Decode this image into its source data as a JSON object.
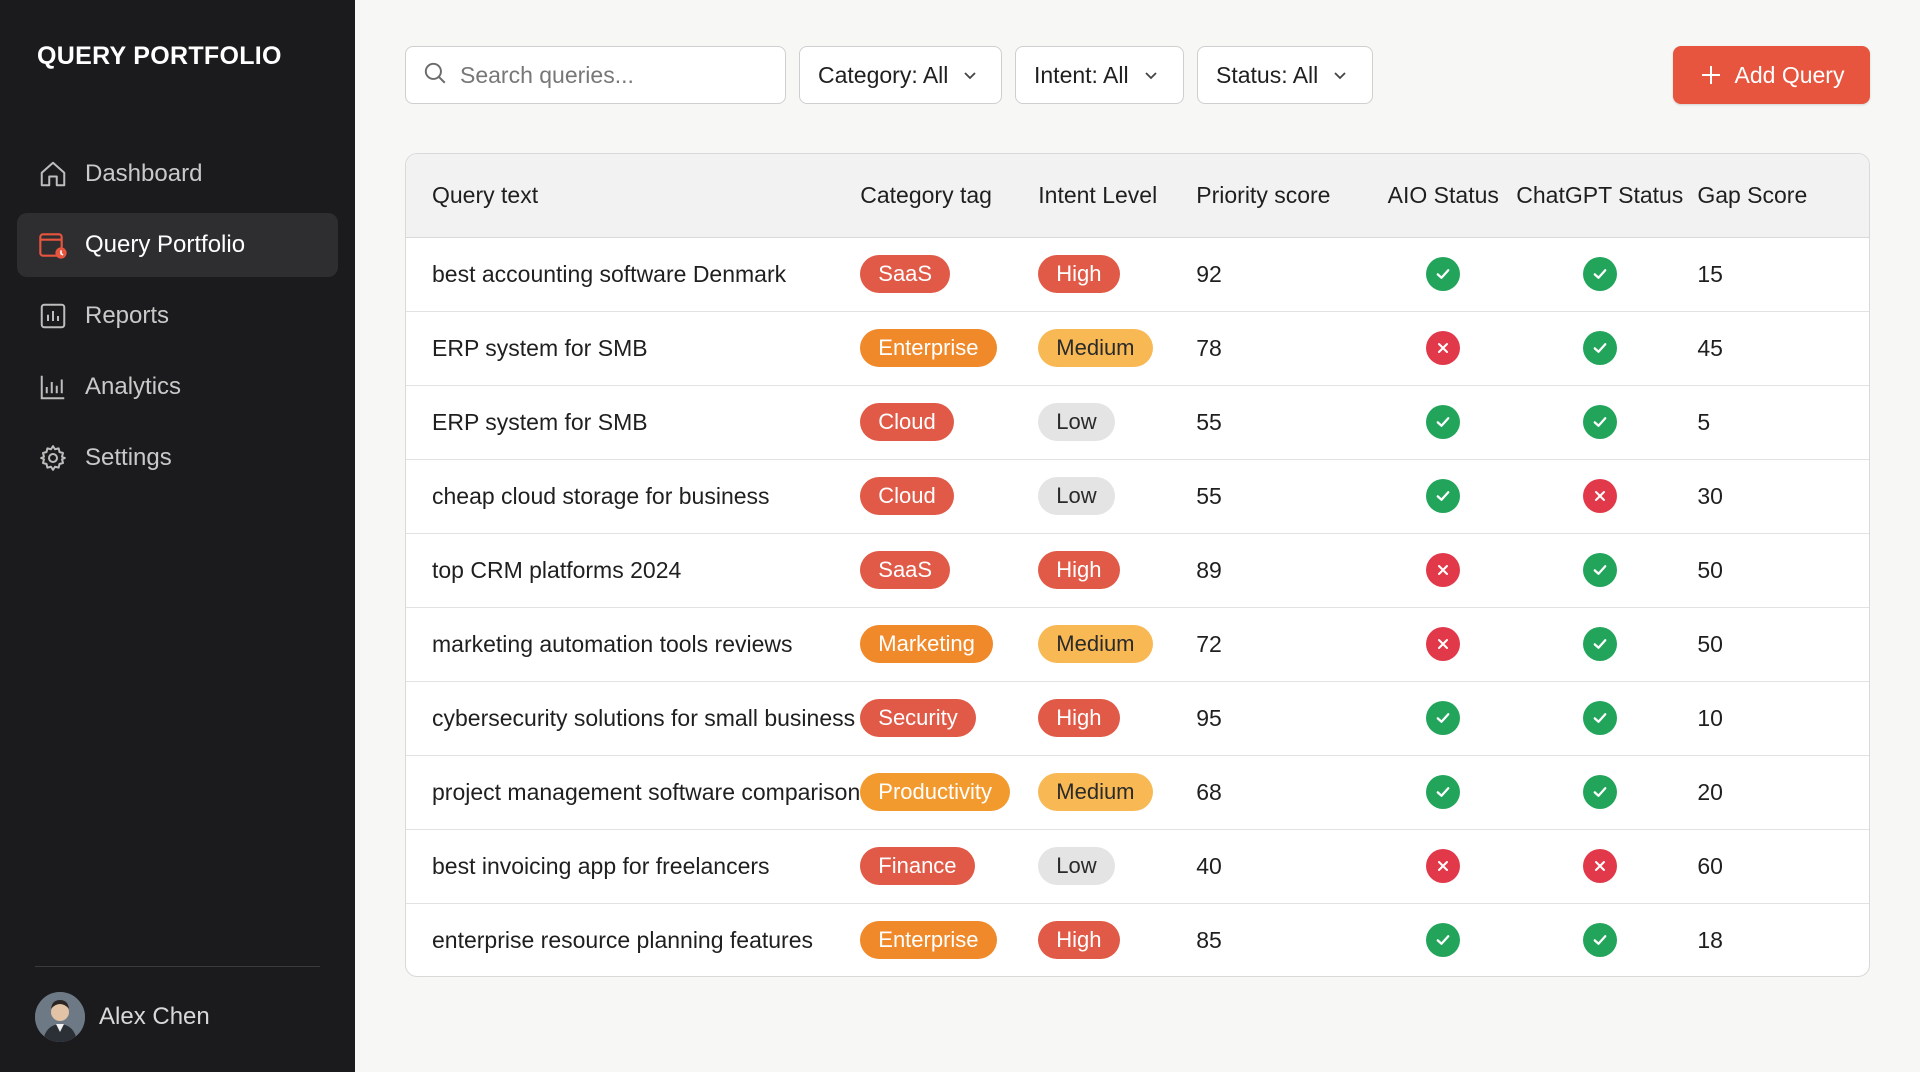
{
  "app": {
    "title": "QUERY PORTFOLIO"
  },
  "sidebar": {
    "items": [
      {
        "label": "Dashboard",
        "icon": "home-icon",
        "active": false
      },
      {
        "label": "Query Portfolio",
        "icon": "portfolio-icon",
        "active": true
      },
      {
        "label": "Reports",
        "icon": "reports-icon",
        "active": false
      },
      {
        "label": "Analytics",
        "icon": "analytics-icon",
        "active": false
      },
      {
        "label": "Settings",
        "icon": "gear-icon",
        "active": false
      }
    ],
    "user": {
      "name": "Alex Chen"
    }
  },
  "toolbar": {
    "search_placeholder": "Search queries...",
    "filters": [
      {
        "label": "Category: All"
      },
      {
        "label": "Intent: All"
      },
      {
        "label": "Status: All"
      }
    ],
    "add_label": "Add Query"
  },
  "table": {
    "headers": [
      "Query text",
      "Category tag",
      "Intent Level",
      "Priority score",
      "AIO Status",
      "ChatGPT Status",
      "Gap Score"
    ],
    "rows": [
      {
        "query": "best accounting software Denmark",
        "category": "SaaS",
        "intent": "High",
        "priority": "92",
        "aio": "ok",
        "chatgpt": "ok",
        "gap": "15"
      },
      {
        "query": "ERP system for SMB",
        "category": "Enterprise",
        "intent": "Medium",
        "priority": "78",
        "aio": "bad",
        "chatgpt": "ok",
        "gap": "45"
      },
      {
        "query": "ERP system for SMB",
        "category": "Cloud",
        "intent": "Low",
        "priority": "55",
        "aio": "ok",
        "chatgpt": "ok",
        "gap": "5"
      },
      {
        "query": "cheap cloud storage for business",
        "category": "Cloud",
        "intent": "Low",
        "priority": "55",
        "aio": "ok",
        "chatgpt": "bad",
        "gap": "30"
      },
      {
        "query": "top CRM platforms 2024",
        "category": "SaaS",
        "intent": "High",
        "priority": "89",
        "aio": "bad",
        "chatgpt": "ok",
        "gap": "50"
      },
      {
        "query": "marketing automation tools reviews",
        "category": "Marketing",
        "intent": "Medium",
        "priority": "72",
        "aio": "bad",
        "chatgpt": "ok",
        "gap": "50"
      },
      {
        "query": "cybersecurity solutions for small business",
        "category": "Security",
        "intent": "High",
        "priority": "95",
        "aio": "ok",
        "chatgpt": "ok",
        "gap": "10"
      },
      {
        "query": "project management software comparison",
        "category": "Productivity",
        "intent": "Medium",
        "priority": "68",
        "aio": "ok",
        "chatgpt": "ok",
        "gap": "20"
      },
      {
        "query": "best invoicing app for freelancers",
        "category": "Finance",
        "intent": "Low",
        "priority": "40",
        "aio": "bad",
        "chatgpt": "bad",
        "gap": "60"
      },
      {
        "query": "enterprise resource planning features",
        "category": "Enterprise",
        "intent": "High",
        "priority": "85",
        "aio": "ok",
        "chatgpt": "ok",
        "gap": "18"
      }
    ]
  },
  "colors": {
    "accent": "#e8553f",
    "category": {
      "SaaS": "#e05a47",
      "Enterprise": "#f0892a",
      "Cloud": "#e05a47",
      "Marketing": "#f0892a",
      "Security": "#e05a47",
      "Productivity": "#f39a2e",
      "Finance": "#e05a47"
    },
    "intent": {
      "High": {
        "bg": "#e05a47",
        "fg": "#ffffff"
      },
      "Medium": {
        "bg": "#f8b955",
        "fg": "#2a2a2a"
      },
      "Low": {
        "bg": "#e4e4e4",
        "fg": "#2a2a2a"
      }
    },
    "status_ok": "#22a55b",
    "status_bad": "#e2394a"
  }
}
